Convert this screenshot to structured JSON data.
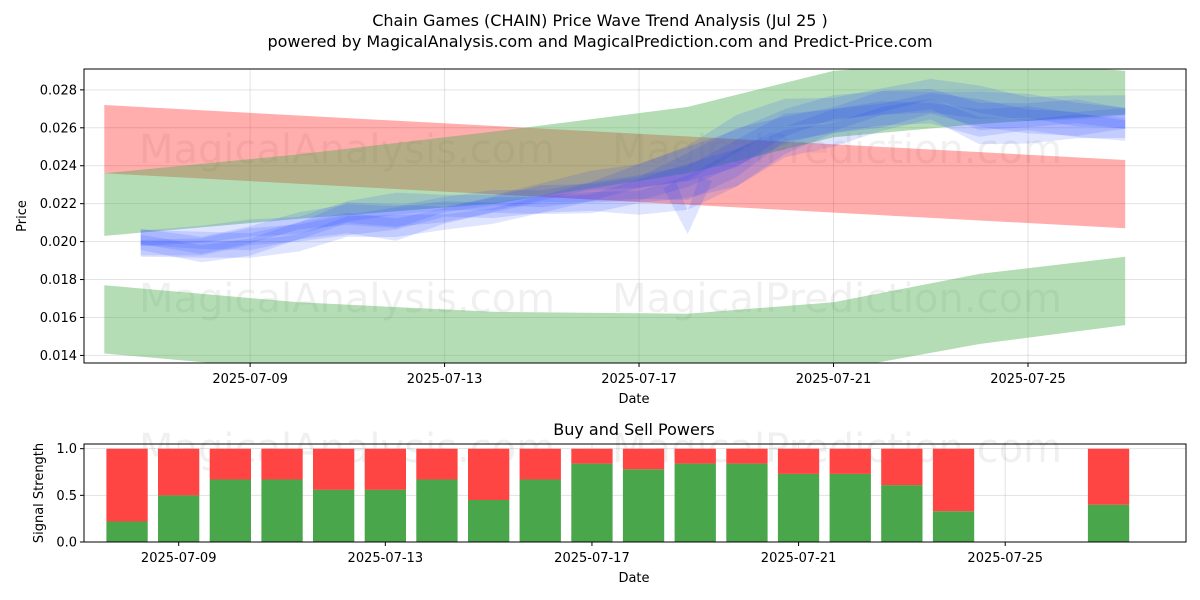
{
  "header": {
    "title": "Chain Games (CHAIN) Price Wave Trend Analysis (Jul 25 )",
    "subtitle": "powered by MagicalAnalysis.com and MagicalPrediction.com and Predict-Price.com"
  },
  "watermarks": {
    "left": "MagicalAnalysis.com",
    "right": "MagicalPrediction.com"
  },
  "colors": {
    "green_band": "#4caf50",
    "red_band": "#ff0000",
    "blue_wave": "#1f3dff",
    "buy_bar": "#4aa64a",
    "sell_bar": "#ff4444"
  },
  "chart_data": [
    {
      "type": "area",
      "title": "",
      "xlabel": "Date",
      "ylabel": "Price",
      "x_range": [
        "2025-07-05T14:00",
        "2025-07-28T06:00"
      ],
      "ylim": [
        0.0136,
        0.0291
      ],
      "y_ticks": [
        "0.014",
        "0.016",
        "0.018",
        "0.020",
        "0.022",
        "0.024",
        "0.026",
        "0.028"
      ],
      "x_ticks": [
        "2025-07-09",
        "2025-07-13",
        "2025-07-17",
        "2025-07-21",
        "2025-07-25"
      ],
      "grid": true,
      "bands": [
        {
          "color": "red",
          "x": [
            "2025-07-06",
            "2025-07-27"
          ],
          "upper": [
            0.0272,
            0.0243
          ],
          "lower": [
            0.0236,
            0.0207
          ]
        },
        {
          "color": "green",
          "x": [
            "2025-07-06",
            "2025-07-10",
            "2025-07-14",
            "2025-07-18",
            "2025-07-21",
            "2025-07-24",
            "2025-07-27"
          ],
          "upper": [
            0.0236,
            0.0246,
            0.0258,
            0.0271,
            0.029,
            0.0296,
            0.029
          ],
          "lower": [
            0.0203,
            0.0212,
            0.022,
            0.0236,
            0.0255,
            0.0262,
            0.0267
          ]
        },
        {
          "color": "green",
          "x": [
            "2025-07-06",
            "2025-07-10",
            "2025-07-14",
            "2025-07-18",
            "2025-07-21",
            "2025-07-24",
            "2025-07-27"
          ],
          "upper": [
            0.0177,
            0.0168,
            0.0163,
            0.0162,
            0.0168,
            0.0183,
            0.0192
          ],
          "lower": [
            0.0141,
            0.0132,
            0.0127,
            0.0126,
            0.0132,
            0.0146,
            0.0156
          ]
        }
      ],
      "wave": {
        "x": [
          "2025-07-06T18:00",
          "2025-07-08",
          "2025-07-09",
          "2025-07-10",
          "2025-07-11",
          "2025-07-12",
          "2025-07-13",
          "2025-07-14",
          "2025-07-15",
          "2025-07-16",
          "2025-07-17",
          "2025-07-18",
          "2025-07-19",
          "2025-07-20",
          "2025-07-21",
          "2025-07-22",
          "2025-07-23",
          "2025-07-24",
          "2025-07-25",
          "2025-07-26",
          "2025-07-27"
        ],
        "mid": [
          0.02,
          0.0198,
          0.0201,
          0.0206,
          0.0212,
          0.0212,
          0.0216,
          0.0219,
          0.0222,
          0.0225,
          0.0229,
          0.0235,
          0.0246,
          0.0259,
          0.0265,
          0.027,
          0.0273,
          0.0267,
          0.0266,
          0.0265,
          0.0264
        ],
        "spread": [
          0.0009,
          0.001,
          0.001,
          0.001,
          0.0012,
          0.0013,
          0.0009,
          0.0009,
          0.001,
          0.0011,
          0.0014,
          0.002,
          0.0022,
          0.0016,
          0.0014,
          0.0014,
          0.0012,
          0.0016,
          0.0014,
          0.0014,
          0.0012
        ],
        "dip_point": {
          "x": "2025-07-18",
          "y": 0.0204
        }
      }
    },
    {
      "type": "bar",
      "title": "Buy and Sell Powers",
      "xlabel": "Date",
      "ylabel": "Signal Strength",
      "ylim": [
        0,
        1.05
      ],
      "y_ticks": [
        "0.0",
        "0.5",
        "1.0"
      ],
      "x_ticks": [
        "2025-07-09",
        "2025-07-13",
        "2025-07-17",
        "2025-07-21",
        "2025-07-25"
      ],
      "grid": true,
      "categories": [
        "2025-07-08",
        "2025-07-09",
        "2025-07-10",
        "2025-07-11",
        "2025-07-12",
        "2025-07-13",
        "2025-07-14",
        "2025-07-15",
        "2025-07-16",
        "2025-07-17",
        "2025-07-18",
        "2025-07-19",
        "2025-07-20",
        "2025-07-21",
        "2025-07-22",
        "2025-07-23",
        "2025-07-24",
        "2025-07-27"
      ],
      "series": [
        {
          "name": "Buy",
          "values": [
            0.22,
            0.5,
            0.67,
            0.67,
            0.56,
            0.56,
            0.67,
            0.45,
            0.67,
            0.84,
            0.78,
            0.84,
            0.84,
            0.73,
            0.73,
            0.61,
            0.33,
            0.4
          ]
        },
        {
          "name": "Sell",
          "values": [
            0.78,
            0.5,
            0.33,
            0.33,
            0.44,
            0.44,
            0.33,
            0.55,
            0.33,
            0.16,
            0.22,
            0.16,
            0.16,
            0.27,
            0.27,
            0.39,
            0.67,
            0.6
          ]
        }
      ]
    }
  ]
}
